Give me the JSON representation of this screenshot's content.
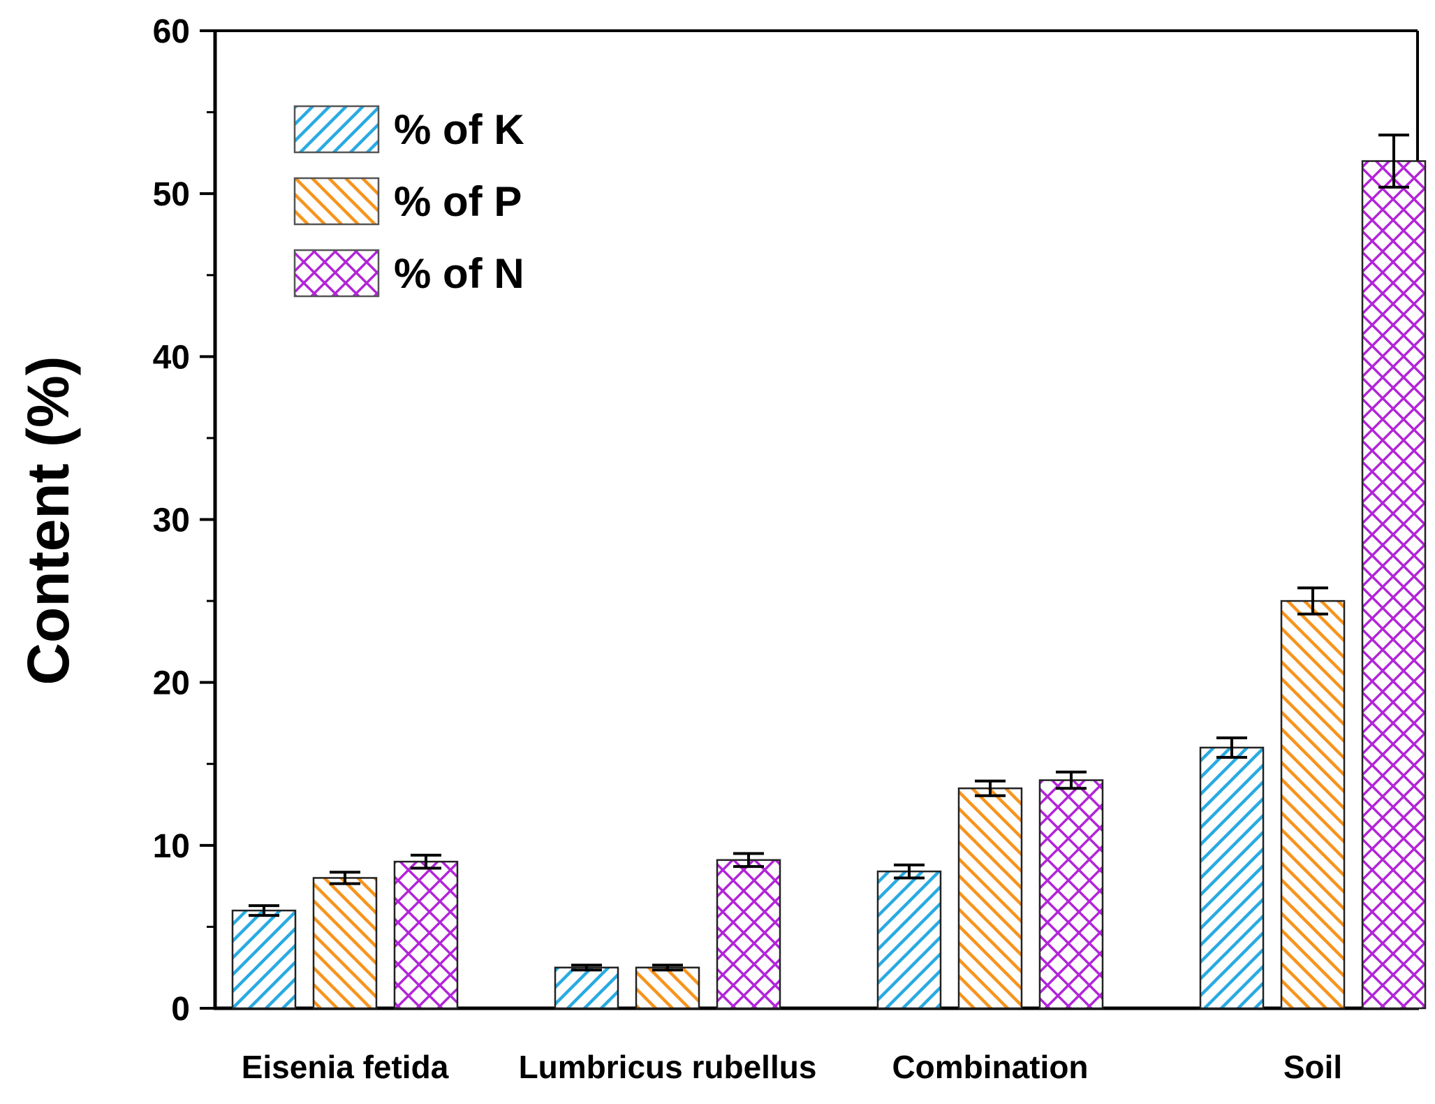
{
  "chart_data": {
    "type": "bar",
    "title": "",
    "xlabel": "",
    "ylabel": "Content (%)",
    "ylim": [
      0,
      60
    ],
    "yticks": [
      0,
      10,
      20,
      30,
      40,
      50,
      60
    ],
    "yticks_minor": [
      5,
      15,
      25,
      35,
      45,
      55
    ],
    "grid": false,
    "legend_position": "top-left",
    "categories": [
      "Eisenia fetida",
      "Lumbricus rubellus",
      "Combination",
      "Soil"
    ],
    "series": [
      {
        "name": "% of K",
        "values": [
          6.0,
          2.5,
          8.4,
          16.0
        ],
        "errors": [
          0.3,
          0.15,
          0.4,
          0.6
        ],
        "color": "#29aae2",
        "pattern": "diagonal-up"
      },
      {
        "name": "% of P",
        "values": [
          8.0,
          2.5,
          13.5,
          25.0
        ],
        "errors": [
          0.35,
          0.15,
          0.45,
          0.8
        ],
        "color": "#f7941d",
        "pattern": "diagonal-down"
      },
      {
        "name": "% of N",
        "values": [
          9.0,
          9.1,
          14.0,
          52.0
        ],
        "errors": [
          0.4,
          0.4,
          0.5,
          1.6
        ],
        "color": "#b224d8",
        "pattern": "crosshatch"
      }
    ]
  }
}
